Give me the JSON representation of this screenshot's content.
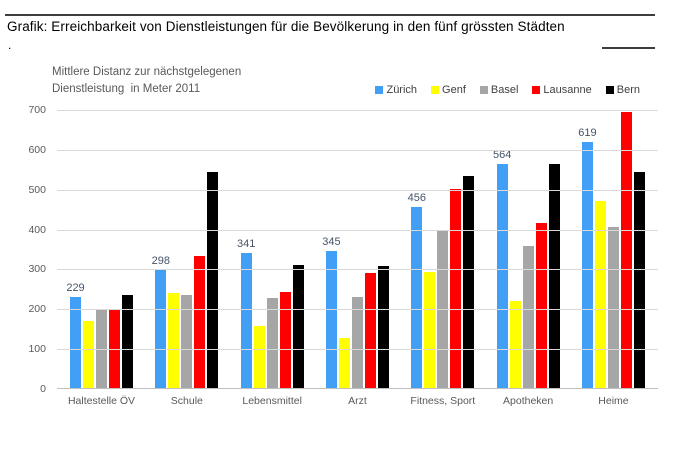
{
  "header": {
    "title": "Grafik: Erreichbarkeit von Dienstleistungen für die Bevölkerung in den fünf grössten Städten",
    "stray_period": "."
  },
  "chart": {
    "title_line1": "Mittlere Distanz zur nächstgelegenen",
    "title_line2": "Dienstleistung  in Meter 2011"
  },
  "chart_data": {
    "type": "bar",
    "title": "Mittlere Distanz zur nächstgelegenen Dienstleistung in Meter 2011",
    "categories": [
      "Haltestelle ÖV",
      "Schule",
      "Lebensmittel",
      "Arzt",
      "Fitness, Sport",
      "Apotheken",
      "Heime"
    ],
    "series": [
      {
        "name": "Zürich",
        "color": "#41a0f5",
        "values": [
          229,
          298,
          341,
          345,
          456,
          564,
          619
        ]
      },
      {
        "name": "Genf",
        "color": "#ffff00",
        "values": [
          170,
          240,
          155,
          125,
          293,
          220,
          470
        ]
      },
      {
        "name": "Basel",
        "color": "#a6a6a6",
        "values": [
          197,
          235,
          227,
          228,
          398,
          358,
          405
        ]
      },
      {
        "name": "Lausanne",
        "color": "#ff0000",
        "values": [
          197,
          333,
          242,
          290,
          500,
          415,
          695
        ]
      },
      {
        "name": "Bern",
        "color": "#000000",
        "values": [
          233,
          543,
          310,
          308,
          535,
          565,
          545
        ]
      }
    ],
    "data_labels_series": "Zürich",
    "data_labels_color": "#44546a",
    "yticks": [
      0,
      100,
      200,
      300,
      400,
      500,
      600,
      700
    ],
    "ylim": [
      0,
      700
    ],
    "xlabel": "",
    "ylabel": "",
    "grid": true,
    "gridline_color": "#d9d9d9",
    "legend_position": "top-right"
  }
}
